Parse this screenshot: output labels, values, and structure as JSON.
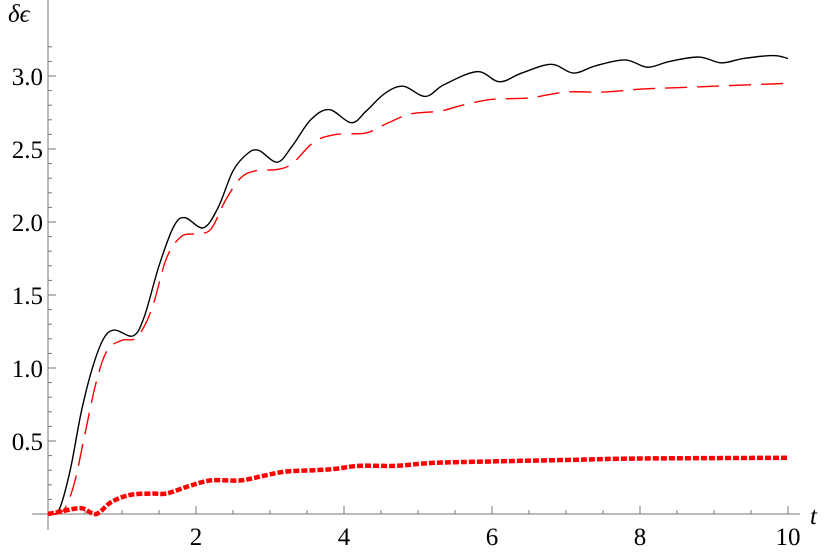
{
  "chart_data": {
    "type": "line",
    "title": "",
    "xlabel": "t",
    "ylabel": "δϵ",
    "xlim": [
      0,
      10
    ],
    "ylim": [
      0,
      3.25
    ],
    "xticks": [
      2,
      4,
      6,
      8,
      10
    ],
    "yticks": [
      0.5,
      1.0,
      1.5,
      2.0,
      2.5,
      3.0
    ],
    "xtick_labels": [
      "2",
      "4",
      "6",
      "8",
      "10"
    ],
    "ytick_labels": [
      "0.5",
      "1.0",
      "1.5",
      "2.0",
      "2.5",
      "3.0"
    ],
    "grid": false,
    "series": [
      {
        "style": "solid",
        "color": "#000000",
        "points": [
          [
            0,
            0
          ],
          [
            0.15,
            0.03
          ],
          [
            0.3,
            0.3
          ],
          [
            0.45,
            0.7
          ],
          [
            0.6,
            1.0
          ],
          [
            0.75,
            1.2
          ],
          [
            0.9,
            1.26
          ],
          [
            1.15,
            1.22
          ],
          [
            1.3,
            1.35
          ],
          [
            1.5,
            1.7
          ],
          [
            1.7,
            1.97
          ],
          [
            1.85,
            2.03
          ],
          [
            2.1,
            1.96
          ],
          [
            2.3,
            2.1
          ],
          [
            2.5,
            2.35
          ],
          [
            2.7,
            2.47
          ],
          [
            2.85,
            2.49
          ],
          [
            3.1,
            2.41
          ],
          [
            3.3,
            2.52
          ],
          [
            3.55,
            2.7
          ],
          [
            3.8,
            2.77
          ],
          [
            4.1,
            2.68
          ],
          [
            4.3,
            2.76
          ],
          [
            4.55,
            2.88
          ],
          [
            4.8,
            2.93
          ],
          [
            5.1,
            2.86
          ],
          [
            5.35,
            2.94
          ],
          [
            5.8,
            3.03
          ],
          [
            6.1,
            2.96
          ],
          [
            6.4,
            3.02
          ],
          [
            6.8,
            3.08
          ],
          [
            7.1,
            3.02
          ],
          [
            7.4,
            3.07
          ],
          [
            7.8,
            3.11
          ],
          [
            8.1,
            3.06
          ],
          [
            8.4,
            3.1
          ],
          [
            8.8,
            3.13
          ],
          [
            9.1,
            3.09
          ],
          [
            9.4,
            3.12
          ],
          [
            9.8,
            3.14
          ],
          [
            10,
            3.12
          ]
        ]
      },
      {
        "style": "dashed",
        "color": "#ff0000",
        "points": [
          [
            0,
            0
          ],
          [
            0.2,
            0.02
          ],
          [
            0.35,
            0.2
          ],
          [
            0.5,
            0.55
          ],
          [
            0.65,
            0.9
          ],
          [
            0.8,
            1.12
          ],
          [
            1,
            1.19
          ],
          [
            1.2,
            1.21
          ],
          [
            1.4,
            1.4
          ],
          [
            1.6,
            1.75
          ],
          [
            1.8,
            1.9
          ],
          [
            2,
            1.92
          ],
          [
            2.2,
            1.95
          ],
          [
            2.4,
            2.15
          ],
          [
            2.6,
            2.3
          ],
          [
            2.8,
            2.35
          ],
          [
            3.1,
            2.36
          ],
          [
            3.3,
            2.4
          ],
          [
            3.6,
            2.55
          ],
          [
            3.9,
            2.6
          ],
          [
            4.3,
            2.61
          ],
          [
            4.6,
            2.68
          ],
          [
            4.9,
            2.74
          ],
          [
            5.3,
            2.76
          ],
          [
            5.6,
            2.8
          ],
          [
            6,
            2.84
          ],
          [
            6.5,
            2.85
          ],
          [
            7,
            2.89
          ],
          [
            7.5,
            2.89
          ],
          [
            8,
            2.91
          ],
          [
            8.5,
            2.92
          ],
          [
            9,
            2.93
          ],
          [
            10,
            2.95
          ]
        ]
      },
      {
        "style": "dotted-thick",
        "color": "#ff0000",
        "points": [
          [
            0,
            0
          ],
          [
            0.2,
            0.02
          ],
          [
            0.45,
            0.04
          ],
          [
            0.65,
            0.0
          ],
          [
            0.85,
            0.08
          ],
          [
            1.1,
            0.13
          ],
          [
            1.4,
            0.14
          ],
          [
            1.6,
            0.14
          ],
          [
            1.9,
            0.19
          ],
          [
            2.2,
            0.23
          ],
          [
            2.6,
            0.23
          ],
          [
            2.9,
            0.26
          ],
          [
            3.2,
            0.29
          ],
          [
            3.6,
            0.3
          ],
          [
            3.9,
            0.31
          ],
          [
            4.2,
            0.33
          ],
          [
            4.7,
            0.33
          ],
          [
            5.2,
            0.35
          ],
          [
            6,
            0.36
          ],
          [
            7,
            0.37
          ],
          [
            8,
            0.38
          ],
          [
            10,
            0.385
          ]
        ]
      }
    ]
  }
}
